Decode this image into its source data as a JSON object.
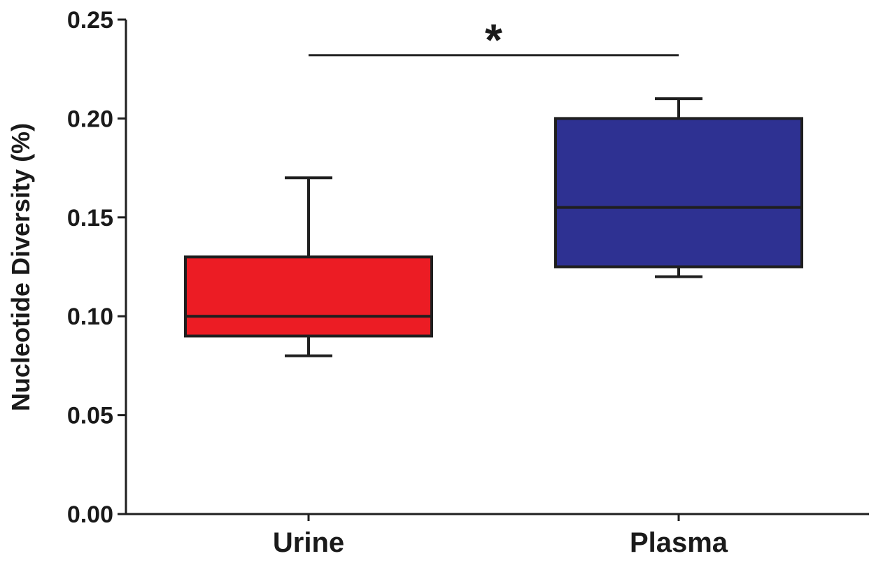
{
  "chart_data": {
    "type": "box",
    "title": "",
    "xlabel": "",
    "ylabel": "Nucleotide Diversity (%)",
    "ylim": [
      0,
      0.25
    ],
    "yticks": [
      "0.00",
      "0.05",
      "0.10",
      "0.15",
      "0.20",
      "0.25"
    ],
    "categories": [
      "Urine",
      "Plasma"
    ],
    "boxes": [
      {
        "category": "Urine",
        "min": 0.08,
        "q1": 0.09,
        "median": 0.1,
        "q3": 0.13,
        "max": 0.17,
        "color": "#ec1c24"
      },
      {
        "category": "Plasma",
        "min": 0.12,
        "q1": 0.125,
        "median": 0.155,
        "q3": 0.2,
        "max": 0.21,
        "color": "#2e3192"
      }
    ],
    "significance": {
      "from": "Urine",
      "to": "Plasma",
      "label": "*",
      "y": 0.232
    },
    "grid": false,
    "legend": "none"
  }
}
